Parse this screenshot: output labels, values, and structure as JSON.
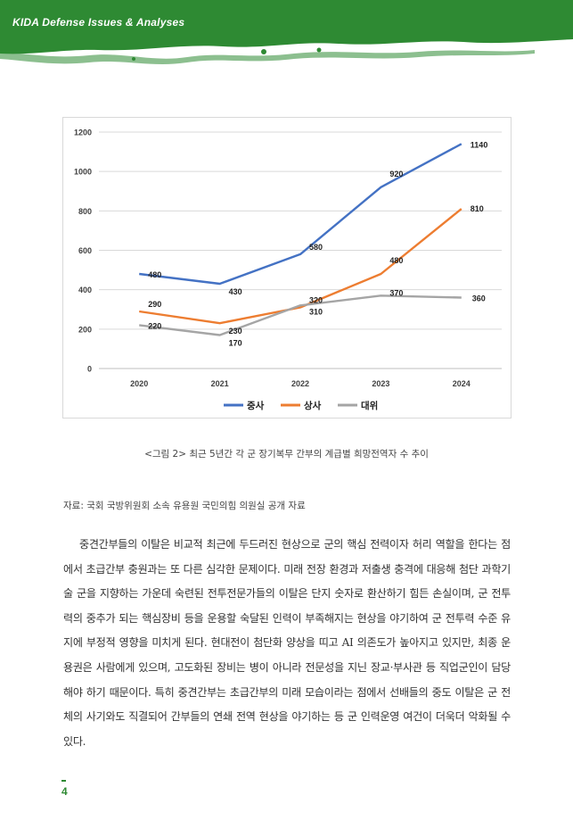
{
  "header": {
    "title": "KIDA Defense Issues & Analyses"
  },
  "figure": {
    "caption": "<그림 2> 최근 5년간 각 군 장기복무 간부의 계급별 희망전역자 수 추이",
    "source": "자료: 국회 국방위원회 소속 유용원 국민의힘 의원실 공개 자료"
  },
  "chart_data": {
    "type": "line",
    "title": "",
    "xlabel": "",
    "ylabel": "",
    "x": [
      "2020",
      "2021",
      "2022",
      "2023",
      "2024"
    ],
    "yticks": [
      "0",
      "200",
      "400",
      "600",
      "800",
      "1000",
      "1200"
    ],
    "ylim": [
      0,
      1200
    ],
    "grid": true,
    "legend_position": "bottom",
    "series": [
      {
        "name": "중사",
        "color": "#4472c4",
        "values": [
          480,
          430,
          580,
          920,
          1140
        ],
        "labels": [
          "480",
          "430",
          "580",
          "920",
          "1140"
        ]
      },
      {
        "name": "상사",
        "color": "#ed7d31",
        "values": [
          290,
          230,
          310,
          480,
          810
        ],
        "labels": [
          "290",
          "230",
          "310",
          "480",
          "810"
        ]
      },
      {
        "name": "대위",
        "color": "#a5a5a5",
        "values": [
          220,
          170,
          320,
          370,
          360
        ],
        "labels": [
          "220",
          "170",
          "320",
          "370",
          "360"
        ]
      }
    ]
  },
  "body": {
    "paragraph": "중견간부들의 이탈은 비교적 최근에 두드러진 현상으로 군의 핵심 전력이자 허리 역할을 한다는 점에서 초급간부 충원과는 또 다른 심각한 문제이다. 미래 전장 환경과 저출생 충격에 대응해 첨단 과학기술 군을 지향하는 가운데 숙련된 전투전문가들의 이탈은 단지 숫자로 환산하기 힘든 손실이며, 군 전투력의 중추가 되는 핵심장비 등을 운용할 숙달된 인력이 부족해지는 현상을 야기하여 군 전투력 수준 유지에 부정적 영향을 미치게 된다. 현대전이 첨단화 양상을 띠고 AI 의존도가 높아지고 있지만, 최종 운용권은 사람에게 있으며, 고도화된 장비는 병이 아니라 전문성을 지닌 장교·부사관 등 직업군인이 담당해야 하기 때문이다. 특히 중견간부는 초급간부의 미래 모습이라는 점에서 선배들의 중도 이탈은 군 전체의 사기와도 직결되어 간부들의 연쇄 전역 현상을 야기하는 등 군 인력운영 여건이 더욱더 악화될 수 있다."
  },
  "footer": {
    "page_number": "4"
  }
}
